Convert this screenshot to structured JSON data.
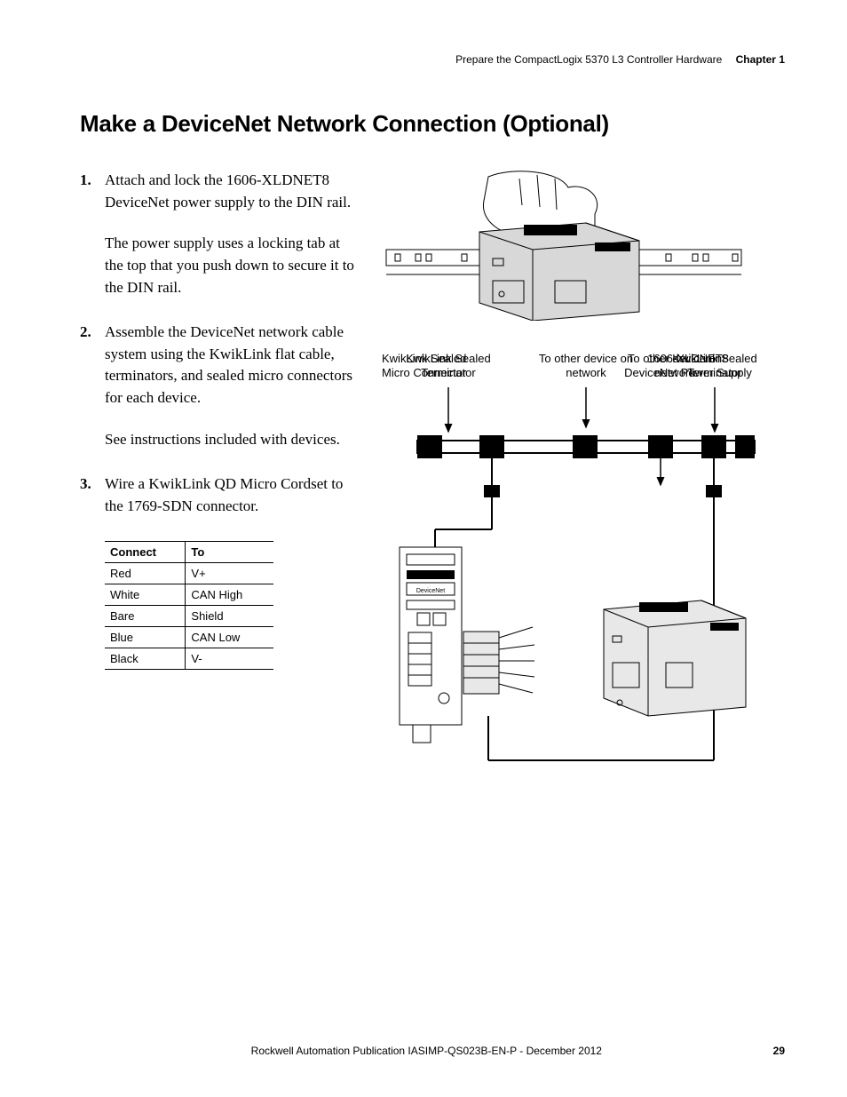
{
  "header": {
    "breadcrumb": "Prepare the CompactLogix 5370 L3 Controller Hardware",
    "chapter_label": "Chapter 1"
  },
  "section_title": "Make a DeviceNet Network Connection (Optional)",
  "steps": [
    {
      "lead": "Attach and lock the 1606-XLDNET8 DeviceNet power supply to the DIN rail.",
      "para": "The power supply uses a locking tab at the top that you push down to secure it to the DIN rail."
    },
    {
      "lead": "Assemble the DeviceNet network cable system using the KwikLink flat cable, terminators, and sealed micro connectors for each device.",
      "para": "See instructions included with devices."
    },
    {
      "lead": "Wire a KwikLink QD Micro Cordset to the 1769-SDN connector."
    }
  ],
  "wire_table": {
    "columns": [
      "Connect",
      "To"
    ],
    "rows": [
      [
        "Red",
        "V+"
      ],
      [
        "White",
        "CAN High"
      ],
      [
        "Bare",
        "Shield"
      ],
      [
        "Blue",
        "CAN Low"
      ],
      [
        "Black",
        "V-"
      ]
    ]
  },
  "fig2_labels": {
    "term_left": "KwikLink Sealed\nTerminator",
    "other_top": "To other device on\nnetwork",
    "term_right": "KwikLink Sealed\nTerminator",
    "micro": "KwikLink Sealed\nMicro Connector",
    "other_mid": "To other device on\nnetwork",
    "psu": "1606-XLDNET8\nDeviceNet Power Supply"
  },
  "footer": {
    "publication": "Rockwell Automation Publication IASIMP-QS023B-EN-P - December 2012",
    "page_number": "29"
  },
  "colors": {
    "text": "#000000",
    "bg": "#ffffff",
    "rule": "#000000",
    "shade": "#d0d0d0"
  }
}
